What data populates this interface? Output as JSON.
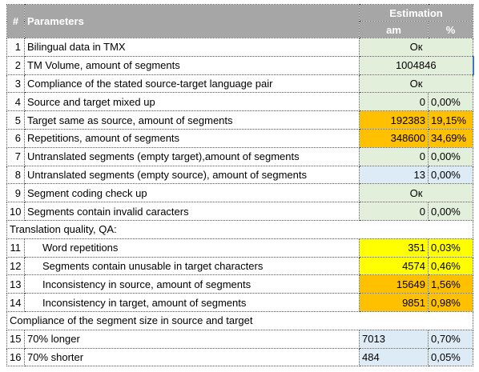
{
  "header": {
    "number": "#",
    "parameters": "Parameters",
    "estimation": "Estimation",
    "am": "am",
    "percent": "%"
  },
  "rows": [
    {
      "number": "1",
      "parameter": "Bilingual data in TMX",
      "estimation": "Ок"
    },
    {
      "number": "2",
      "parameter": "TM Volume, amount of segments",
      "estimation": "1004846"
    },
    {
      "number": "3",
      "parameter": "Compliance of the stated source-target language pair",
      "estimation": "Ок"
    },
    {
      "number": "4",
      "parameter": "Source and target mixed up",
      "am": "0",
      "percent": "0,00%"
    },
    {
      "number": "5",
      "parameter": "Target same as source, amount of segments",
      "am": "192383",
      "percent": "19,15%"
    },
    {
      "number": "6",
      "parameter": "Repetitions, amount of segments",
      "am": "348600",
      "percent": "34,69%"
    },
    {
      "number": "7",
      "parameter": "Untranslated segments (empty target),amount of segments",
      "am": "0",
      "percent": "0,00%"
    },
    {
      "number": "8",
      "parameter": "Untranslated segments (empty source), amount of segments",
      "am": "13",
      "percent": "0,00%"
    },
    {
      "number": "9",
      "parameter": "Segment coding check up",
      "estimation": "Ок"
    },
    {
      "number": "10",
      "parameter": "Segments contain invalid caracters",
      "am": "0",
      "percent": "0,00%"
    },
    {
      "section": "Translation quality, QA:"
    },
    {
      "number": "11",
      "parameter": "Word repetitions",
      "am": "351",
      "percent": "0,03%"
    },
    {
      "number": "12",
      "parameter": "Segments contain unusable in target characters",
      "am": "4574",
      "percent": "0,46%"
    },
    {
      "number": "13",
      "parameter": "Inconsistency in source, amount of segments",
      "am": "15649",
      "percent": "1,56%"
    },
    {
      "number": "14",
      "parameter": "Inconsistency in target, amount of segments",
      "am": "9851",
      "percent": "0,98%"
    },
    {
      "section": "Compliance of the segment size in source and target"
    },
    {
      "number": "15",
      "parameter": "70% longer",
      "am": "7013",
      "percent": "0,70%"
    },
    {
      "number": "16",
      "parameter": "70% shorter",
      "am": "484",
      "percent": "0,05%"
    }
  ]
}
